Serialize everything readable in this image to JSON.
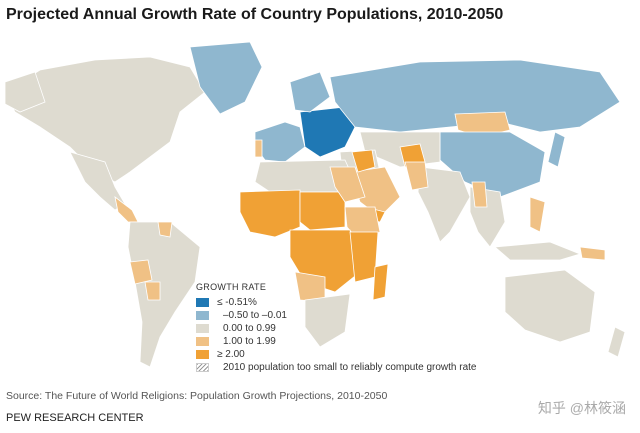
{
  "title": "Projected Annual Growth Rate of Country Populations, 2010-2050",
  "legend": {
    "title": "GROWTH RATE",
    "items": [
      {
        "label": "≤ -0.51%",
        "color": "#1f78b4"
      },
      {
        "label": "–0.50 to –0.01",
        "color": "#8fb7cf"
      },
      {
        "label": "0.00 to 0.99",
        "color": "#dedbd0"
      },
      {
        "label": "1.00 to 1.99",
        "color": "#f0c185"
      },
      {
        "label": "≥ 2.00",
        "color": "#f0a135"
      },
      {
        "label": "2010 population too small to reliably compute growth rate",
        "color": "hatch"
      }
    ]
  },
  "colors": {
    "ocean": "#ffffff",
    "border": "#ffffff"
  },
  "source": "Source: The Future of World Religions: Population Growth Projections, 2010-2050",
  "organization": "PEW RESEARCH CENTER",
  "watermark": "知乎 @林筱涵"
}
